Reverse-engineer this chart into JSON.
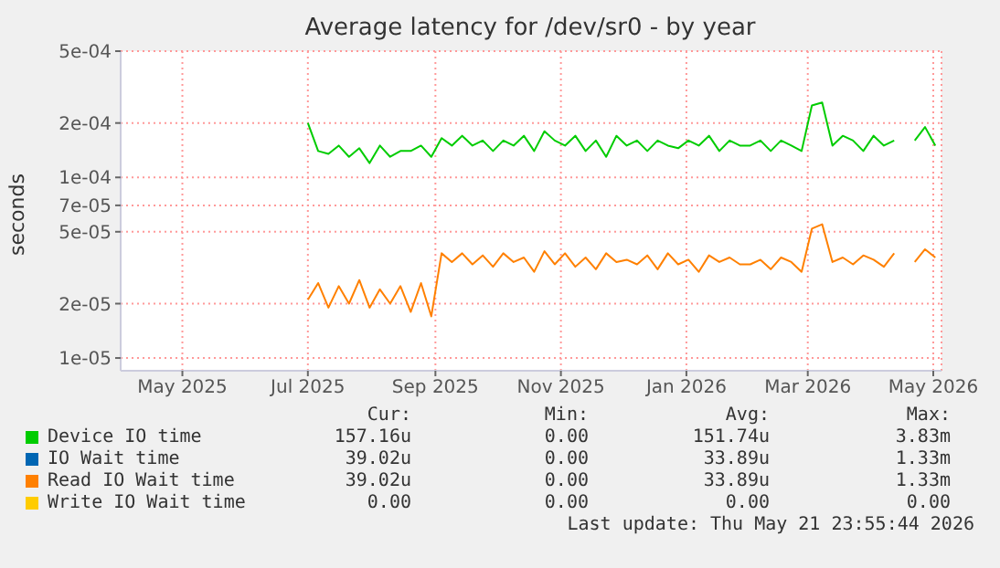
{
  "chart_data": {
    "type": "line",
    "title": "Average latency for /dev/sr0 - by year",
    "ylabel": "seconds",
    "log": "y",
    "grid": true,
    "legend": "bottom",
    "marker": "none",
    "xlim": [
      "2025-04-01",
      "2026-05-05"
    ],
    "xticks": [
      {
        "value": "2025-05-01",
        "label": "May 2025"
      },
      {
        "value": "2025-07-01",
        "label": "Jul 2025"
      },
      {
        "value": "2025-09-01",
        "label": "Sep 2025"
      },
      {
        "value": "2025-11-01",
        "label": "Nov 2025"
      },
      {
        "value": "2026-01-01",
        "label": "Jan 2026"
      },
      {
        "value": "2026-03-01",
        "label": "Mar 2026"
      },
      {
        "value": "2026-05-01",
        "label": "May 2026"
      }
    ],
    "ylim": [
      8.5e-06,
      0.0005
    ],
    "yticks": [
      {
        "value": 1e-05,
        "label": "1e-05"
      },
      {
        "value": 2e-05,
        "label": "2e-05"
      },
      {
        "value": 5e-05,
        "label": "5e-05"
      },
      {
        "value": 7e-05,
        "label": "7e-05"
      },
      {
        "value": 0.0001,
        "label": "1e-04"
      },
      {
        "value": 0.0002,
        "label": "2e-04"
      },
      {
        "value": 0.0005,
        "label": "5e-04"
      }
    ],
    "x": [
      "2025-07-01",
      "2025-07-06",
      "2025-07-11",
      "2025-07-16",
      "2025-07-21",
      "2025-07-26",
      "2025-07-31",
      "2025-08-05",
      "2025-08-10",
      "2025-08-15",
      "2025-08-20",
      "2025-08-25",
      "2025-08-30",
      "2025-09-04",
      "2025-09-09",
      "2025-09-14",
      "2025-09-19",
      "2025-09-24",
      "2025-09-29",
      "2025-10-04",
      "2025-10-09",
      "2025-10-14",
      "2025-10-19",
      "2025-10-24",
      "2025-10-29",
      "2025-11-03",
      "2025-11-08",
      "2025-11-13",
      "2025-11-18",
      "2025-11-23",
      "2025-11-28",
      "2025-12-03",
      "2025-12-08",
      "2025-12-13",
      "2025-12-18",
      "2025-12-23",
      "2025-12-28",
      "2026-01-02",
      "2026-01-07",
      "2026-01-12",
      "2026-01-17",
      "2026-01-22",
      "2026-01-27",
      "2026-02-01",
      "2026-02-06",
      "2026-02-11",
      "2026-02-16",
      "2026-02-21",
      "2026-02-26",
      "2026-03-03",
      "2026-03-08",
      "2026-03-13",
      "2026-03-18",
      "2026-03-23",
      "2026-03-28",
      "2026-04-02",
      "2026-04-07",
      "2026-04-12",
      "2026-04-17",
      "2026-04-22",
      "2026-04-27",
      "2026-05-02"
    ],
    "series": [
      {
        "name": "Device IO time",
        "color": "#00cc00",
        "values": [
          0.0002,
          0.00014,
          0.000135,
          0.00015,
          0.00013,
          0.000145,
          0.00012,
          0.00015,
          0.00013,
          0.00014,
          0.00014,
          0.00015,
          0.00013,
          0.000165,
          0.00015,
          0.00017,
          0.00015,
          0.00016,
          0.00014,
          0.00016,
          0.00015,
          0.00017,
          0.00014,
          0.00018,
          0.00016,
          0.00015,
          0.00017,
          0.00014,
          0.00016,
          0.00013,
          0.00017,
          0.00015,
          0.00016,
          0.00014,
          0.00016,
          0.00015,
          0.000145,
          0.00016,
          0.00015,
          0.00017,
          0.00014,
          0.00016,
          0.00015,
          0.00015,
          0.00016,
          0.00014,
          0.00016,
          0.00015,
          0.00014,
          0.00025,
          0.00026,
          0.00015,
          0.00017,
          0.00016,
          0.00014,
          0.00017,
          0.00015,
          0.00016,
          null,
          0.00016,
          0.00019,
          0.00015
        ]
      },
      {
        "name": "IO Wait time",
        "color": "#0066b3",
        "values": [
          null,
          null,
          null,
          null,
          null,
          null,
          null,
          null,
          null,
          null,
          null,
          null,
          null,
          null,
          null,
          null,
          null,
          null,
          null,
          null,
          null,
          null,
          null,
          null,
          null,
          null,
          null,
          null,
          null,
          null,
          null,
          null,
          null,
          null,
          null,
          null,
          null,
          null,
          null,
          null,
          null,
          null,
          null,
          null,
          null,
          null,
          null,
          null,
          null,
          null,
          null,
          null,
          null,
          null,
          null,
          null,
          null,
          null,
          null,
          null,
          null,
          null
        ]
      },
      {
        "name": "Read IO Wait time",
        "color": "#ff8000",
        "values": [
          2.1e-05,
          2.6e-05,
          1.9e-05,
          2.5e-05,
          2e-05,
          2.7e-05,
          1.9e-05,
          2.4e-05,
          2e-05,
          2.5e-05,
          1.8e-05,
          2.6e-05,
          1.7e-05,
          3.8e-05,
          3.4e-05,
          3.8e-05,
          3.3e-05,
          3.7e-05,
          3.2e-05,
          3.8e-05,
          3.4e-05,
          3.6e-05,
          3e-05,
          3.9e-05,
          3.3e-05,
          3.8e-05,
          3.2e-05,
          3.6e-05,
          3.1e-05,
          3.8e-05,
          3.4e-05,
          3.5e-05,
          3.3e-05,
          3.7e-05,
          3.1e-05,
          3.8e-05,
          3.3e-05,
          3.5e-05,
          3e-05,
          3.7e-05,
          3.4e-05,
          3.6e-05,
          3.3e-05,
          3.3e-05,
          3.5e-05,
          3.1e-05,
          3.6e-05,
          3.4e-05,
          3e-05,
          5.2e-05,
          5.5e-05,
          3.4e-05,
          3.6e-05,
          3.3e-05,
          3.7e-05,
          3.5e-05,
          3.2e-05,
          3.8e-05,
          null,
          3.4e-05,
          4e-05,
          3.6e-05
        ]
      },
      {
        "name": "Write IO Wait time",
        "color": "#ffcc00",
        "values": [
          null,
          null,
          null,
          null,
          null,
          null,
          null,
          null,
          null,
          null,
          null,
          null,
          null,
          null,
          null,
          null,
          null,
          null,
          null,
          null,
          null,
          null,
          null,
          null,
          null,
          null,
          null,
          null,
          null,
          null,
          null,
          null,
          null,
          null,
          null,
          null,
          null,
          null,
          null,
          null,
          null,
          null,
          null,
          null,
          null,
          null,
          null,
          null,
          null,
          null,
          null,
          null,
          null,
          null,
          null,
          null,
          null,
          null,
          null,
          null,
          null,
          null
        ]
      }
    ],
    "annotations": [
      "Cur:",
      "Min:",
      "Avg:",
      "Max:",
      "157.16u",
      "0.00",
      "151.74u",
      "3.83m",
      "39.02u",
      "0.00",
      "33.89u",
      "1.33m",
      "39.02u",
      "0.00",
      "33.89u",
      "1.33m",
      "0.00",
      "0.00",
      "0.00",
      "0.00",
      "Last update: Thu May 21 23:55:44 2026"
    ]
  }
}
